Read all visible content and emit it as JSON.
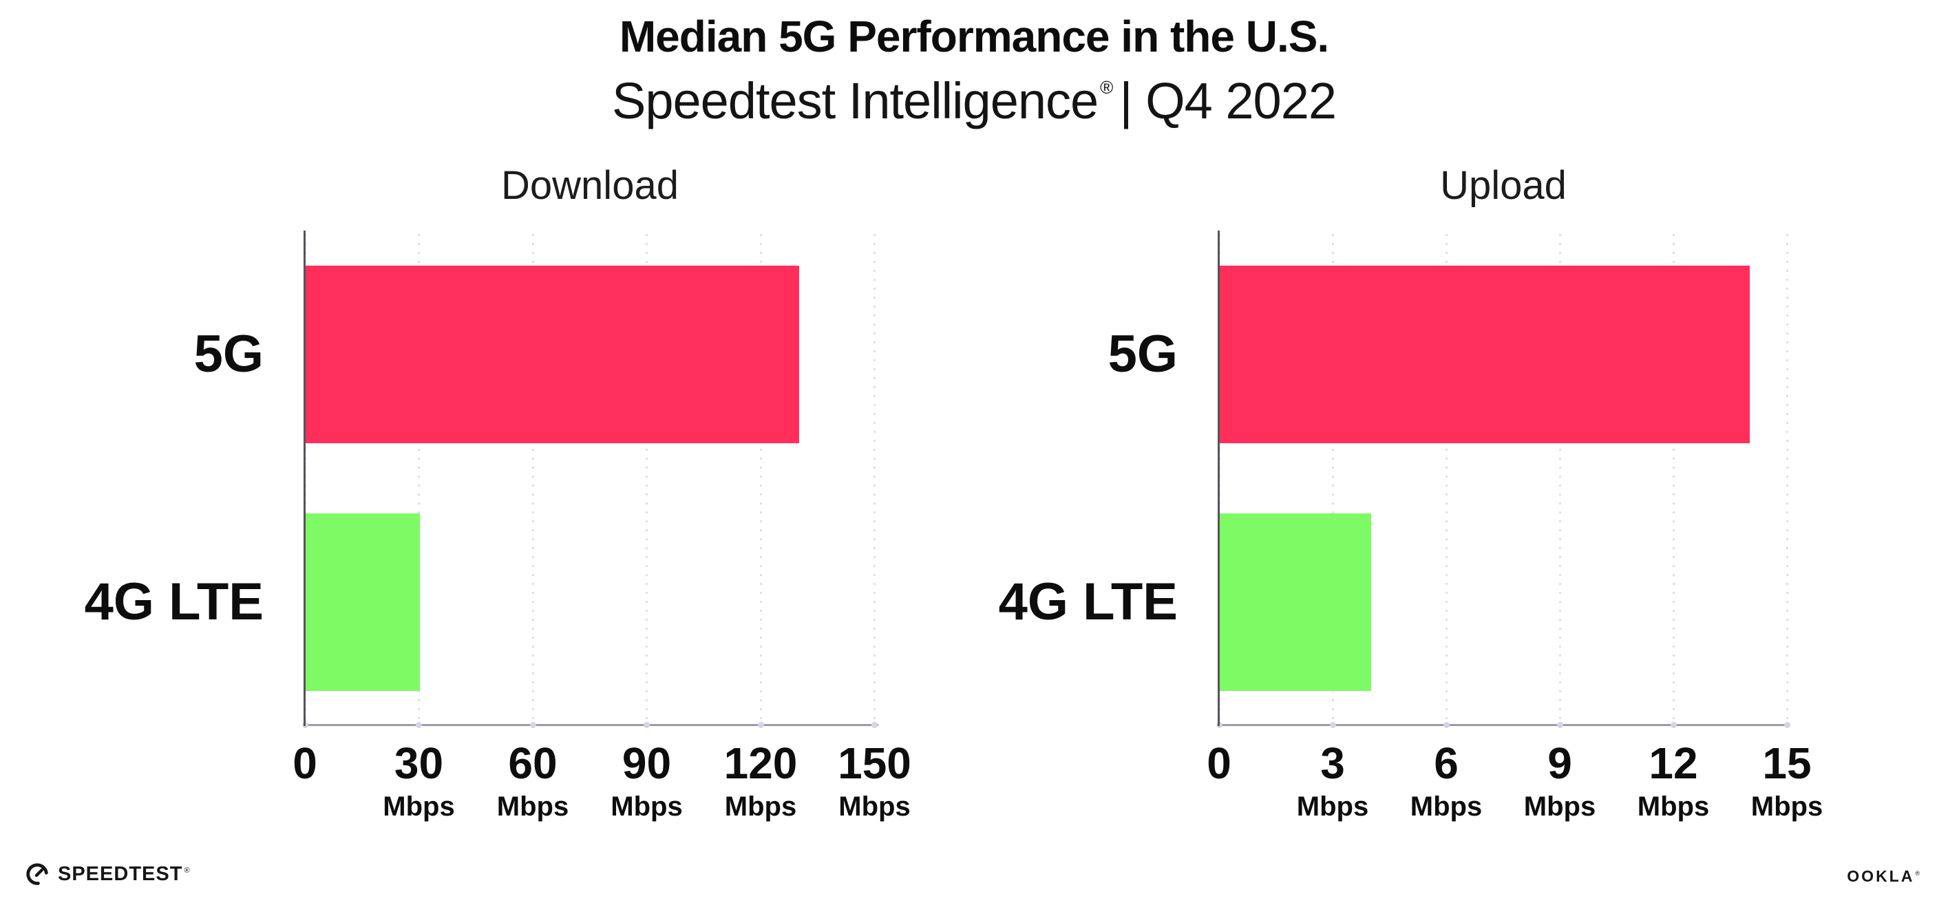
{
  "header": {
    "title": "Median 5G Performance in the U.S.",
    "subtitle_brand": "Speedtest Intelligence",
    "subtitle_reg": "®",
    "subtitle_rest": "| Q4 2022"
  },
  "footer": {
    "speedtest_label": "SPEEDTEST",
    "speedtest_reg": "®",
    "speedtest_icon": "gauge-icon",
    "ookla_label": "OOKLA",
    "ookla_reg": "®"
  },
  "colors": {
    "bar_5g": "#ff2e5b",
    "bar_4g_lte": "#7dfa64",
    "gridline_dots": "#dcdcea",
    "xaxis_line": "#9b9ba3",
    "xaxis_tick_dots": "#d3d4e4",
    "yaxis_line": "#55555b",
    "text": "#111111",
    "background": "#ffffff"
  },
  "chart_data": [
    {
      "type": "bar",
      "orientation": "horizontal",
      "title": "Download",
      "categories": [
        "5G",
        "4G LTE"
      ],
      "values": [
        130,
        30
      ],
      "unit": "Mbps",
      "xlabel": "",
      "ylabel": "",
      "xlim": [
        0,
        150
      ],
      "xticks": [
        0,
        30,
        60,
        90,
        120,
        150
      ],
      "bar_colors": [
        "#ff2e5b",
        "#7dfa64"
      ],
      "grid": "dotted-vertical",
      "legend": "none"
    },
    {
      "type": "bar",
      "orientation": "horizontal",
      "title": "Upload",
      "categories": [
        "5G",
        "4G LTE"
      ],
      "values": [
        14,
        4
      ],
      "unit": "Mbps",
      "xlabel": "",
      "ylabel": "",
      "xlim": [
        0,
        15
      ],
      "xticks": [
        0,
        3,
        6,
        9,
        12,
        15
      ],
      "bar_colors": [
        "#ff2e5b",
        "#7dfa64"
      ],
      "grid": "dotted-vertical",
      "legend": "none"
    }
  ]
}
